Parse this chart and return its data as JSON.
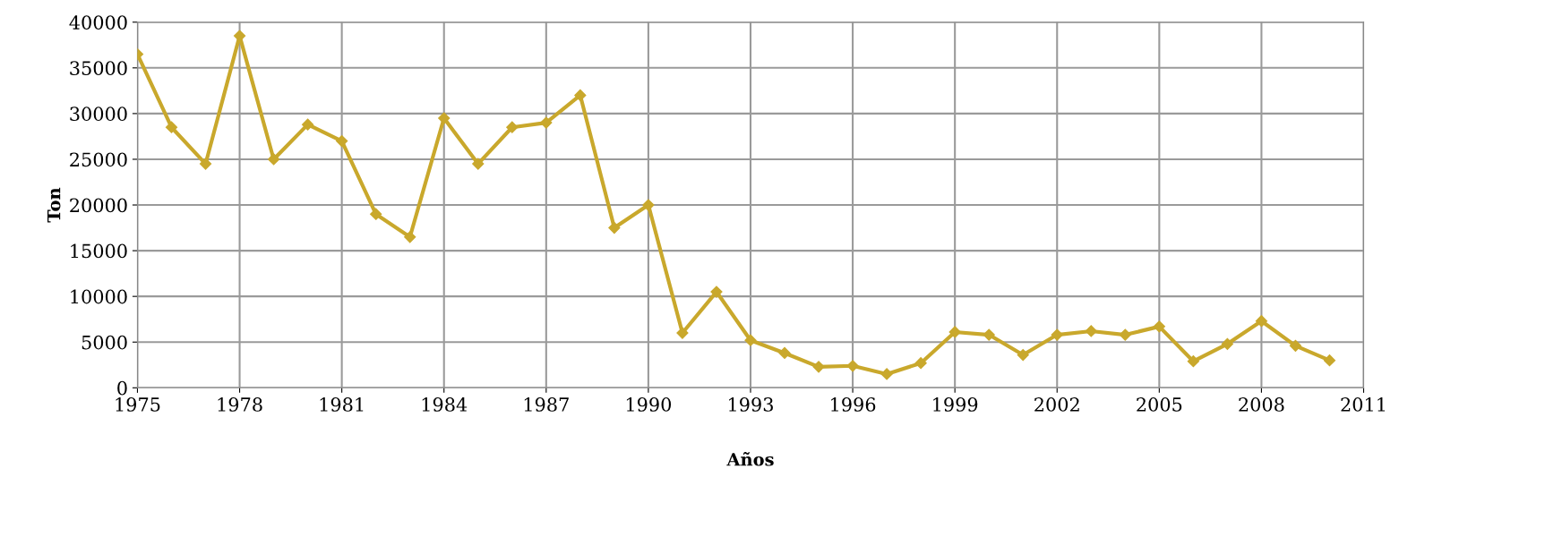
{
  "chart_data": {
    "type": "line",
    "xlabel": "Años",
    "ylabel": "Ton",
    "x": [
      1975,
      1976,
      1977,
      1978,
      1979,
      1980,
      1981,
      1982,
      1983,
      1984,
      1985,
      1986,
      1987,
      1988,
      1989,
      1990,
      1991,
      1992,
      1993,
      1994,
      1995,
      1996,
      1997,
      1998,
      1999,
      2000,
      2001,
      2002,
      2003,
      2004,
      2005,
      2006,
      2007,
      2008,
      2009,
      2010
    ],
    "series": [
      {
        "color": "#c9a82c",
        "values": [
          36500,
          28500,
          24500,
          38500,
          25000,
          28800,
          27000,
          19000,
          16500,
          29500,
          24500,
          28500,
          29000,
          32000,
          17500,
          20000,
          6000,
          10500,
          5200,
          3800,
          2300,
          2400,
          1500,
          2700,
          6100,
          5800,
          3600,
          5800,
          6200,
          5800,
          6700,
          2900,
          4800,
          7300,
          4600,
          3000
        ]
      }
    ],
    "xlim": [
      1975,
      2011
    ],
    "xticks": [
      1975,
      1978,
      1981,
      1984,
      1987,
      1990,
      1993,
      1996,
      1999,
      2002,
      2005,
      2008,
      2011
    ],
    "ylim": [
      0,
      40000
    ],
    "yticks": [
      0,
      5000,
      10000,
      15000,
      20000,
      25000,
      30000,
      35000,
      40000
    ],
    "grid": true,
    "marker": "diamond",
    "line_style": "solid"
  }
}
